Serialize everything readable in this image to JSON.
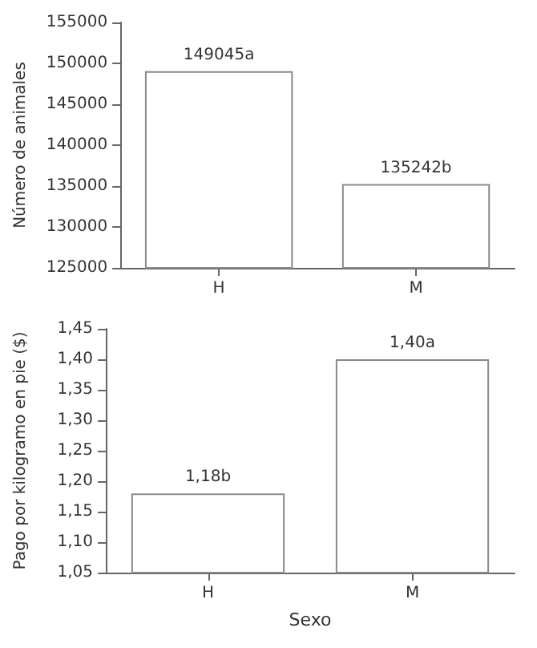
{
  "chart_data": [
    {
      "type": "bar",
      "ylabel": "Número de animales",
      "categories": [
        "H",
        "M"
      ],
      "values": [
        149045,
        135242
      ],
      "value_labels": [
        "149045a",
        "135242b"
      ],
      "color": "#ffffff",
      "ylim": [
        125000,
        155000
      ],
      "yticks": [
        125000,
        130000,
        135000,
        140000,
        145000,
        150000,
        155000
      ],
      "grid": false
    },
    {
      "type": "bar",
      "xlabel": "Sexo",
      "ylabel": "Pago por kilogramo en pie ($)",
      "categories": [
        "H",
        "M"
      ],
      "values": [
        1.18,
        1.4
      ],
      "value_labels": [
        "1,18b",
        "1,40a"
      ],
      "color": "#ffffff",
      "ylim": [
        1.05,
        1.45
      ],
      "yticks": [
        {
          "value": 1.05,
          "label": "1,05"
        },
        {
          "value": 1.1,
          "label": "1,10"
        },
        {
          "value": 1.15,
          "label": "1,15"
        },
        {
          "value": 1.2,
          "label": "1,20"
        },
        {
          "value": 1.25,
          "label": "1,25"
        },
        {
          "value": 1.3,
          "label": "1,30"
        },
        {
          "value": 1.35,
          "label": "1,35"
        },
        {
          "value": 1.4,
          "label": "1,40"
        },
        {
          "value": 1.45,
          "label": "1,45"
        }
      ],
      "grid": false
    }
  ]
}
